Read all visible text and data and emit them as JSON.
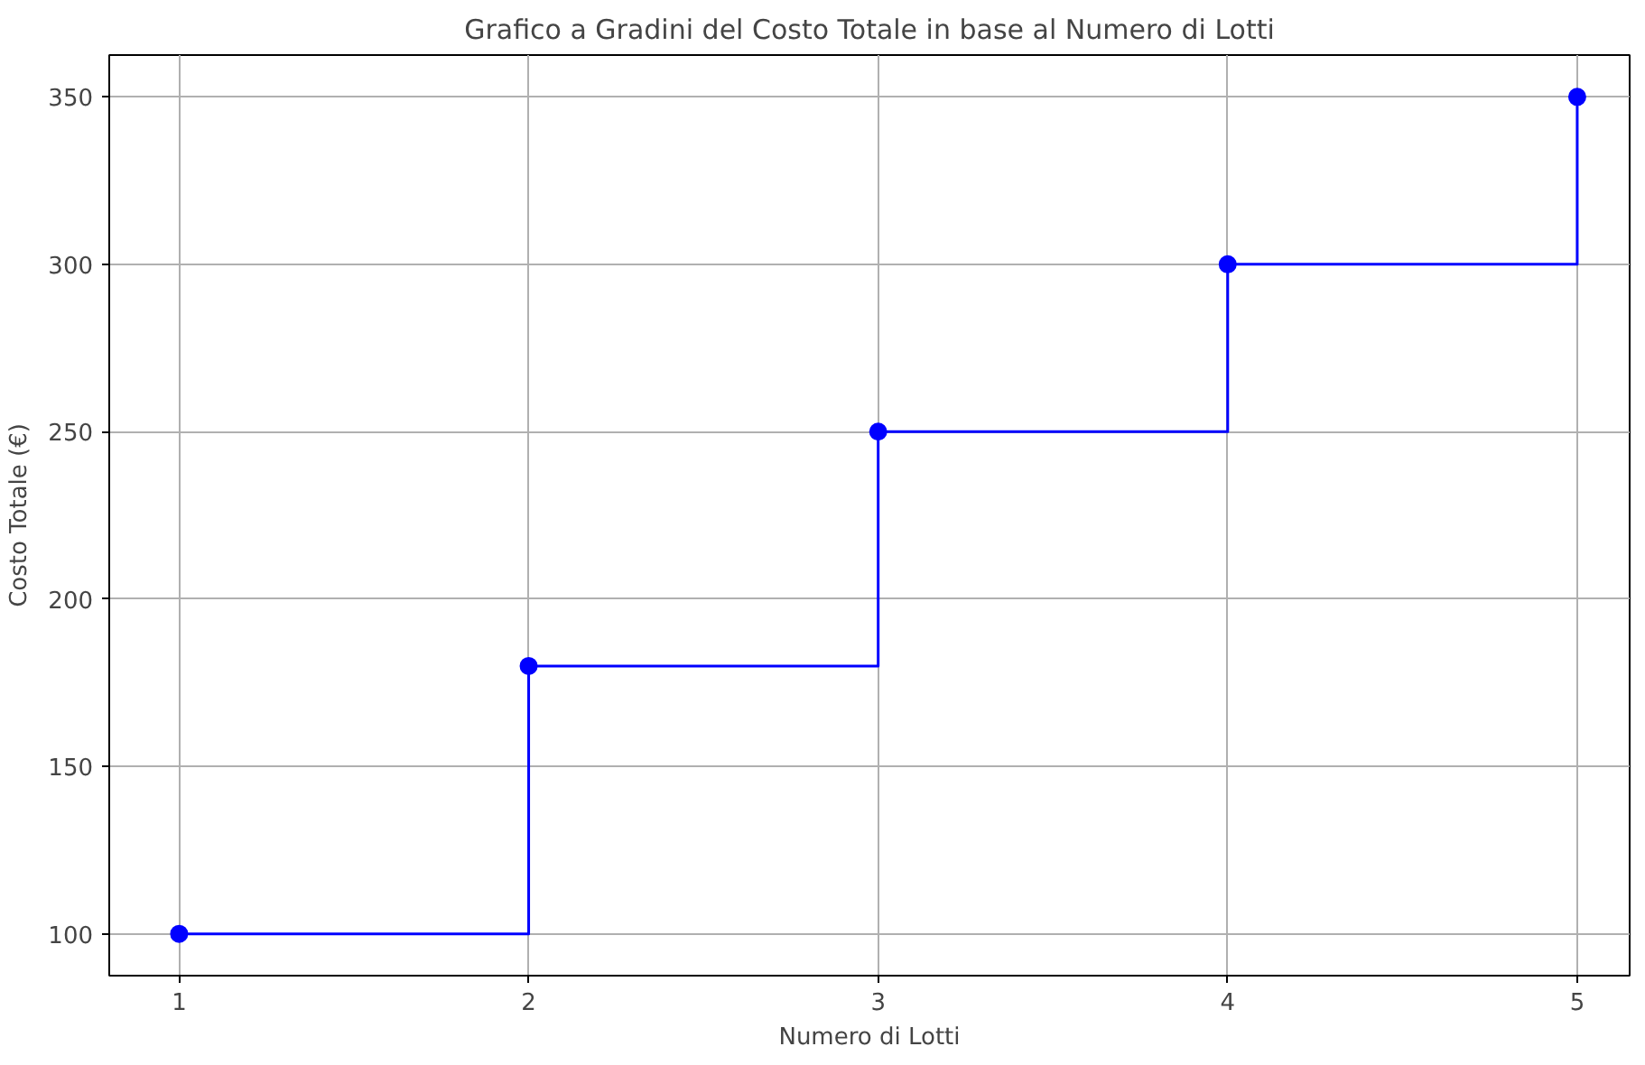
{
  "chart_data": {
    "type": "step",
    "title": "Grafico a Gradini del Costo Totale in base al Numero di Lotti",
    "xlabel": "Numero di Lotti",
    "ylabel": "Costo Totale (€)",
    "x": [
      1,
      2,
      3,
      4,
      5
    ],
    "series": [
      {
        "color": "#0000ff",
        "values": [
          100,
          180,
          250,
          300,
          350
        ]
      }
    ],
    "xlim": [
      0.8,
      5.15
    ],
    "ylim": [
      87.5,
      362.5
    ],
    "xticks": [
      1,
      2,
      3,
      4,
      5
    ],
    "yticks": [
      100,
      150,
      200,
      250,
      300,
      350
    ],
    "grid": true,
    "marker": "circle",
    "line_style": "solid"
  }
}
